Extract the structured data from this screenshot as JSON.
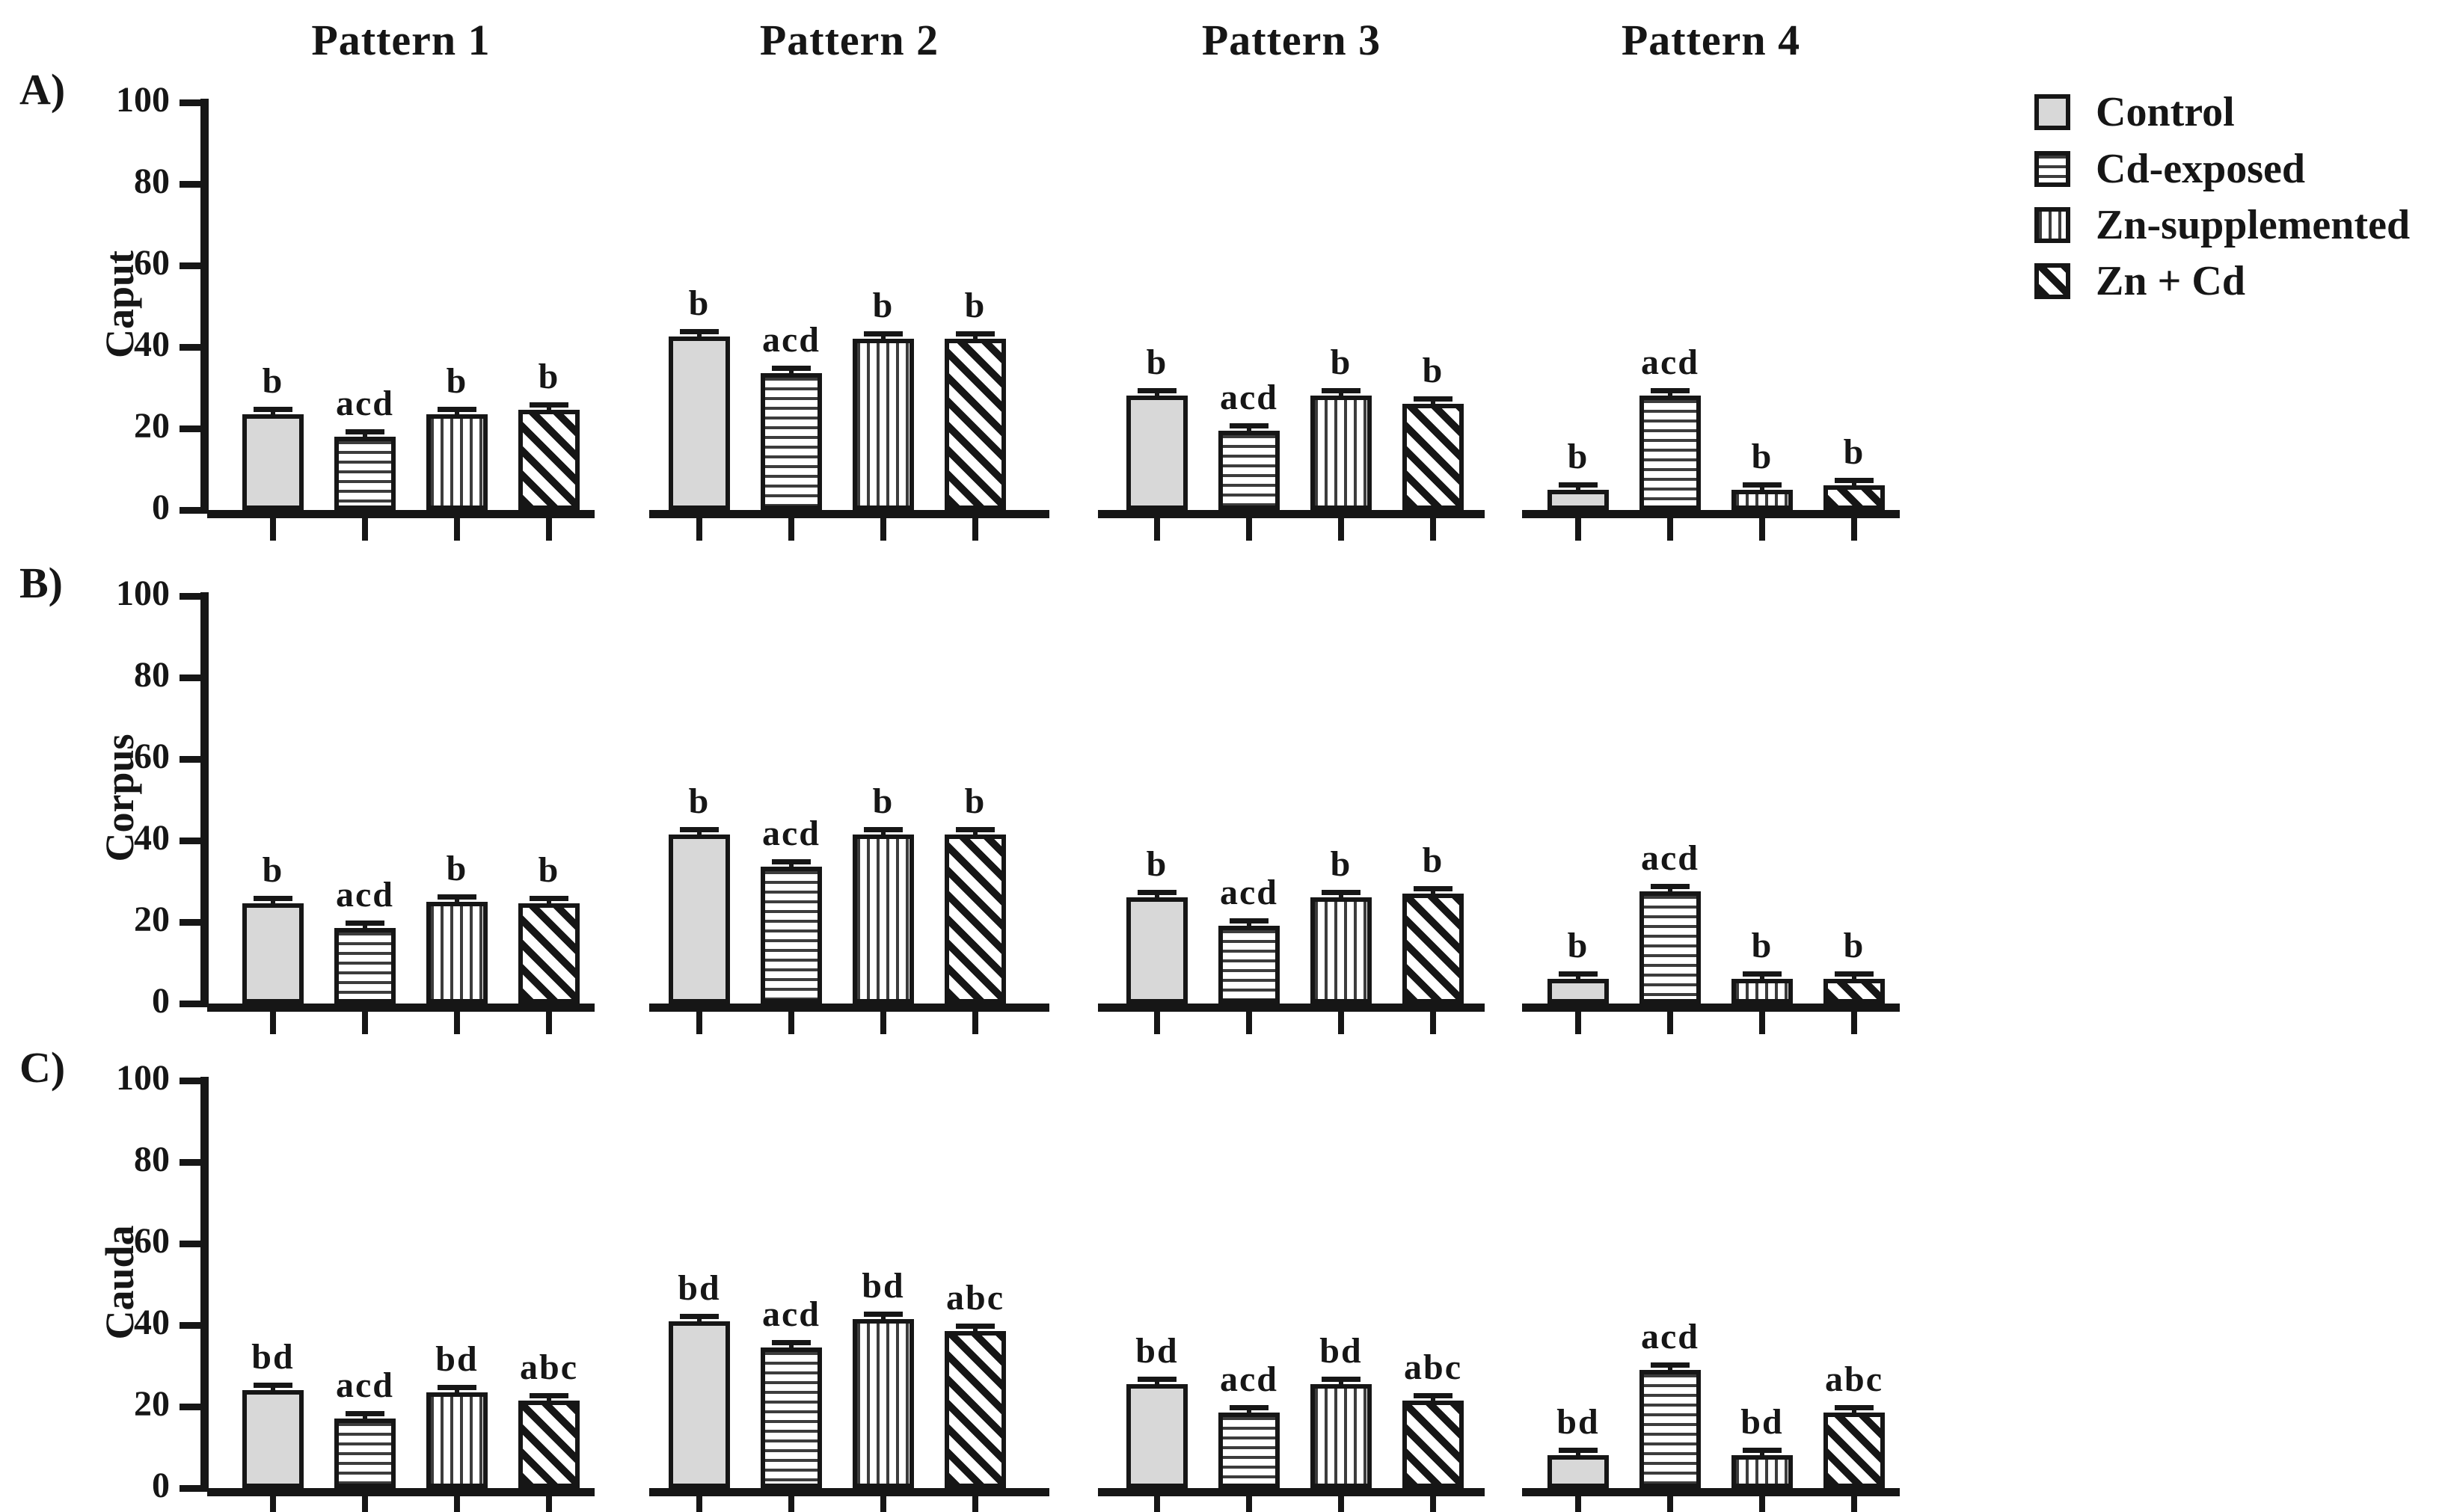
{
  "figure": {
    "column_titles": [
      "Pattern 1",
      "Pattern 2",
      "Pattern 3",
      "Pattern 4"
    ],
    "panel_letters": [
      "A)",
      "B)",
      "C)"
    ],
    "row_labels": [
      "Caput",
      "Corpus",
      "Cauda"
    ],
    "legend": [
      {
        "label": "Control",
        "pattern": "solid-gray",
        "swatch_icon": "solid-gray-swatch-icon"
      },
      {
        "label": "Cd-exposed",
        "pattern": "horizontal-lines",
        "swatch_icon": "horizontal-lines-swatch-icon"
      },
      {
        "label": "Zn-supplemented",
        "pattern": "vertical-lines",
        "swatch_icon": "vertical-lines-swatch-icon"
      },
      {
        "label": "Zn + Cd",
        "pattern": "diagonal-lines",
        "swatch_icon": "diagonal-lines-swatch-icon"
      }
    ],
    "colors": {
      "bar_gray": "#d8d8d8",
      "ink": "#161616",
      "background": "#ffffff"
    }
  },
  "chart_data": [
    {
      "type": "bar",
      "panel_label": "A)",
      "ylabel": "Caput",
      "ylim": [
        0,
        100
      ],
      "yticks": [
        0,
        20,
        40,
        60,
        80,
        100
      ],
      "grid": false,
      "legend_position": "top-right",
      "series_names": [
        "Control",
        "Cd-exposed",
        "Zn-supplemented",
        "Zn + Cd"
      ],
      "groups": [
        {
          "title": "Pattern 1",
          "values": [
            23.5,
            18,
            23.5,
            24.5
          ],
          "errors": [
            0.7,
            0.7,
            0.7,
            0.7
          ],
          "sig_letters": [
            "b",
            "acd",
            "b",
            "b"
          ]
        },
        {
          "title": "Pattern 2",
          "values": [
            42.5,
            33.5,
            42,
            42
          ],
          "errors": [
            0.7,
            0.7,
            0.7,
            0.7
          ],
          "sig_letters": [
            "b",
            "acd",
            "b",
            "b"
          ]
        },
        {
          "title": "Pattern 3",
          "values": [
            28,
            19.5,
            28,
            26
          ],
          "errors": [
            0.7,
            0.7,
            0.7,
            0.7
          ],
          "sig_letters": [
            "b",
            "acd",
            "b",
            "b"
          ]
        },
        {
          "title": "Pattern 4",
          "values": [
            5,
            28,
            5,
            6
          ],
          "errors": [
            0.5,
            0.7,
            0.5,
            0.5
          ],
          "sig_letters": [
            "b",
            "acd",
            "b",
            "b"
          ]
        }
      ]
    },
    {
      "type": "bar",
      "panel_label": "B)",
      "ylabel": "Corpus",
      "ylim": [
        0,
        100
      ],
      "yticks": [
        0,
        20,
        40,
        60,
        80,
        100
      ],
      "grid": false,
      "series_names": [
        "Control",
        "Cd-exposed",
        "Zn-supplemented",
        "Zn + Cd"
      ],
      "groups": [
        {
          "title": "Pattern 1",
          "values": [
            24.5,
            18.5,
            25,
            24.5
          ],
          "errors": [
            0.7,
            0.7,
            0.7,
            0.7
          ],
          "sig_letters": [
            "b",
            "acd",
            "b",
            "b"
          ]
        },
        {
          "title": "Pattern 2",
          "values": [
            41.5,
            33.5,
            41.5,
            41.5
          ],
          "errors": [
            0.7,
            0.7,
            0.7,
            0.7
          ],
          "sig_letters": [
            "b",
            "acd",
            "b",
            "b"
          ]
        },
        {
          "title": "Pattern 3",
          "values": [
            26,
            19,
            26,
            27
          ],
          "errors": [
            0.7,
            0.7,
            0.7,
            0.7
          ],
          "sig_letters": [
            "b",
            "acd",
            "b",
            "b"
          ]
        },
        {
          "title": "Pattern 4",
          "values": [
            6,
            27.5,
            6,
            6
          ],
          "errors": [
            0.5,
            0.7,
            0.5,
            0.5
          ],
          "sig_letters": [
            "b",
            "acd",
            "b",
            "b"
          ]
        }
      ]
    },
    {
      "type": "bar",
      "panel_label": "C)",
      "ylabel": "Cauda",
      "ylim": [
        0,
        100
      ],
      "yticks": [
        0,
        20,
        40,
        60,
        80,
        100
      ],
      "grid": false,
      "series_names": [
        "Control",
        "Cd-exposed",
        "Zn-supplemented",
        "Zn + Cd"
      ],
      "groups": [
        {
          "title": "Pattern 1",
          "values": [
            24,
            17,
            23.5,
            21.5
          ],
          "errors": [
            0.7,
            0.7,
            0.7,
            0.7
          ],
          "sig_letters": [
            "bd",
            "acd",
            "bd",
            "abc"
          ]
        },
        {
          "title": "Pattern 2",
          "values": [
            41,
            34.5,
            41.5,
            38.5
          ],
          "errors": [
            0.7,
            0.7,
            0.7,
            0.7
          ],
          "sig_letters": [
            "bd",
            "acd",
            "bd",
            "abc"
          ]
        },
        {
          "title": "Pattern 3",
          "values": [
            25.5,
            18.5,
            25.5,
            21.5
          ],
          "errors": [
            0.7,
            0.7,
            0.7,
            0.7
          ],
          "sig_letters": [
            "bd",
            "acd",
            "bd",
            "abc"
          ]
        },
        {
          "title": "Pattern 4",
          "values": [
            8,
            29,
            8,
            18.5
          ],
          "errors": [
            0.5,
            0.7,
            0.5,
            0.7
          ],
          "sig_letters": [
            "bd",
            "acd",
            "bd",
            "abc"
          ]
        }
      ]
    }
  ]
}
